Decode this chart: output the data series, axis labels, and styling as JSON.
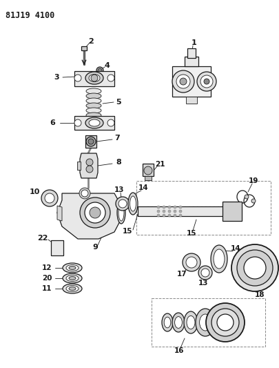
{
  "title": "81J19 4100",
  "bg_color": "#ffffff",
  "line_color": "#1a1a1a",
  "fig_w": 4.06,
  "fig_h": 5.33,
  "dpi": 100
}
